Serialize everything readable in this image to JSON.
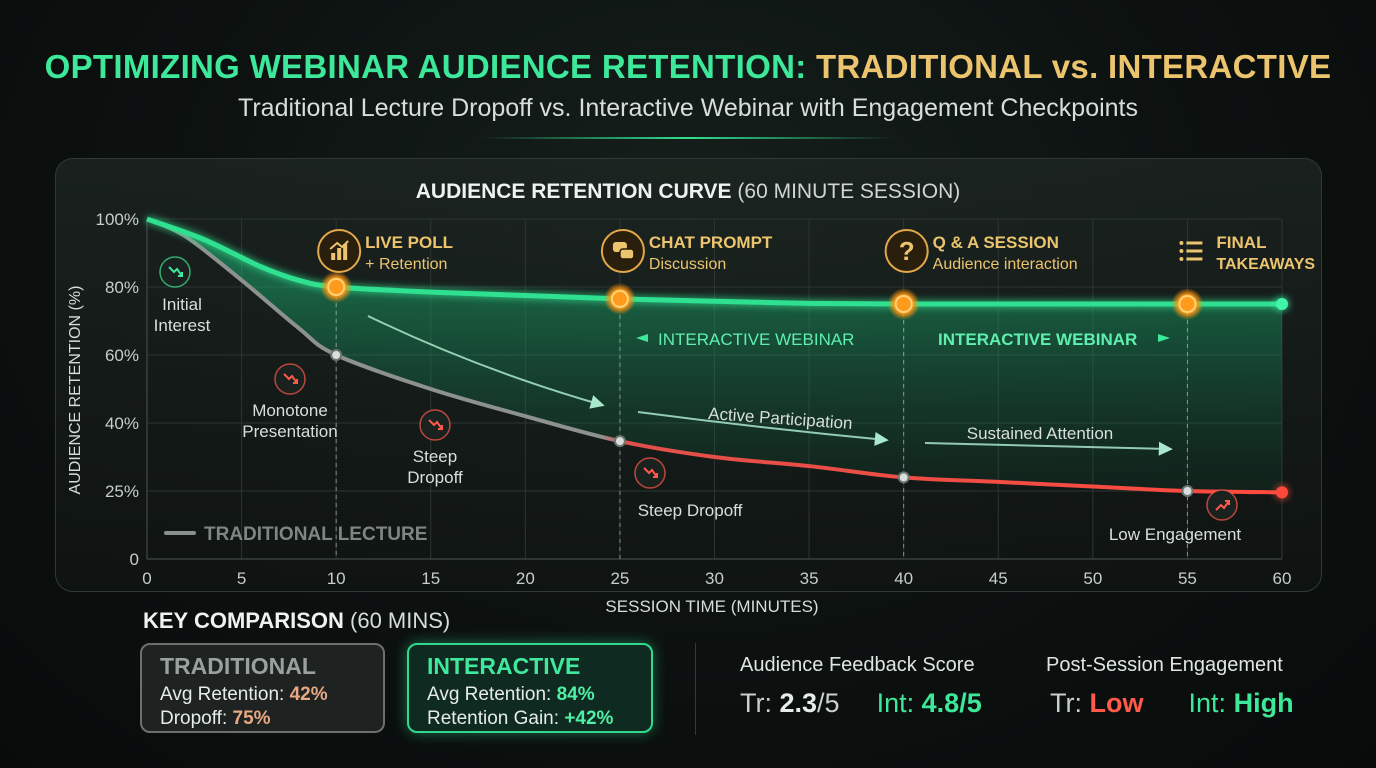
{
  "header": {
    "title_part1": "OPTIMIZING WEBINAR AUDIENCE RETENTION:",
    "title_part2": "TRADITIONAL vs. INTERACTIVE",
    "subtitle": "Traditional Lecture Dropoff vs. Interactive Webinar with Engagement Checkpoints"
  },
  "chart_data": {
    "type": "line",
    "title_bold": "AUDIENCE RETENTION CURVE",
    "title_light": "(60 MINUTE SESSION)",
    "xlabel": "SESSION TIME (MINUTES)",
    "ylabel": "AUDIENCE RETENTION (%)",
    "xlim": [
      0,
      60
    ],
    "x_ticks": [
      0,
      5,
      10,
      15,
      20,
      25,
      30,
      35,
      40,
      45,
      50,
      55,
      60
    ],
    "y_ticks": [
      {
        "value": 0,
        "label": "0"
      },
      {
        "value": 25,
        "label": "25%"
      },
      {
        "value": 40,
        "label": "40%"
      },
      {
        "value": 60,
        "label": "60%"
      },
      {
        "value": 80,
        "label": "80%"
      },
      {
        "value": 100,
        "label": "100%"
      }
    ],
    "grid": true,
    "series": [
      {
        "name": "TRADITIONAL LECTURE",
        "color": "#8a8f8d",
        "points": [
          [
            0,
            100
          ],
          [
            2,
            95
          ],
          [
            5,
            82
          ],
          [
            8,
            68
          ],
          [
            10,
            60
          ],
          [
            15,
            50
          ],
          [
            20,
            42
          ],
          [
            25,
            36
          ],
          [
            30,
            32.5
          ],
          [
            35,
            30.5
          ],
          [
            40,
            28
          ],
          [
            45,
            27
          ],
          [
            50,
            26
          ],
          [
            55,
            25
          ],
          [
            60,
            24.5
          ]
        ]
      },
      {
        "name": "INTERACTIVE WEBINAR",
        "color": "#2fe08f",
        "points": [
          [
            0,
            100
          ],
          [
            3,
            94
          ],
          [
            6,
            86
          ],
          [
            8,
            82
          ],
          [
            10,
            80
          ],
          [
            15,
            78.5
          ],
          [
            20,
            77.5
          ],
          [
            25,
            76.5
          ],
          [
            30,
            75.8
          ],
          [
            35,
            75.2
          ],
          [
            40,
            75
          ],
          [
            45,
            75
          ],
          [
            50,
            75
          ],
          [
            55,
            75
          ],
          [
            60,
            75
          ]
        ]
      }
    ],
    "checkpoints": [
      {
        "x": 10,
        "y": 80,
        "icon": "bar-chart-icon",
        "title": "LIVE POLL",
        "sub": "+ Retention",
        "trad_y": 60
      },
      {
        "x": 25,
        "y": 76.5,
        "icon": "chat-icon",
        "title": "CHAT PROMPT",
        "sub": "Discussion",
        "trad_y": 36
      },
      {
        "x": 40,
        "y": 75,
        "icon": "question-icon",
        "title": "Q & A SESSION",
        "sub": "Audience interaction",
        "trad_y": 28
      },
      {
        "x": 55,
        "y": 75,
        "icon": "list-icon",
        "title": "FINAL",
        "sub": "TAKEAWAYS",
        "trad_y": 25
      }
    ],
    "annotations": {
      "initial_interest": [
        "Initial",
        "Interest"
      ],
      "monotone": [
        "Monotone",
        "Presentation"
      ],
      "steep_dropoff_1": [
        "Steep",
        "Dropoff"
      ],
      "steep_dropoff_2": "Steep Dropoff",
      "low_engagement": "Low Engagement",
      "active_participation": "Active Participation",
      "sustained_attention": "Sustained Attention",
      "interactive_label_1": "INTERACTIVE WEBINAR",
      "interactive_label_2": "INTERACTIVE WEBINAR",
      "traditional_legend": "TRADITIONAL LECTURE"
    }
  },
  "comparison": {
    "title_bold": "KEY COMPARISON",
    "title_light": "(60 MINS)",
    "traditional": {
      "head": "TRADITIONAL",
      "avg_label": "Avg Retention:",
      "avg_value": "42%",
      "drop_label": "Dropoff:",
      "drop_value": "75%"
    },
    "interactive": {
      "head": "INTERACTIVE",
      "avg_label": "Avg Retention:",
      "avg_value": "84%",
      "gain_label": "Retention Gain:",
      "gain_value": "+42%"
    }
  },
  "metrics": {
    "feedback": {
      "label": "Audience Feedback Score",
      "tr_prefix": "Tr:",
      "tr_value": "2.3",
      "tr_suffix": "/5",
      "int_prefix": "Int:",
      "int_value": "4.8/5"
    },
    "engagement": {
      "label": "Post-Session Engagement",
      "tr_prefix": "Tr:",
      "tr_value": "Low",
      "int_prefix": "Int:",
      "int_value": "High"
    }
  }
}
